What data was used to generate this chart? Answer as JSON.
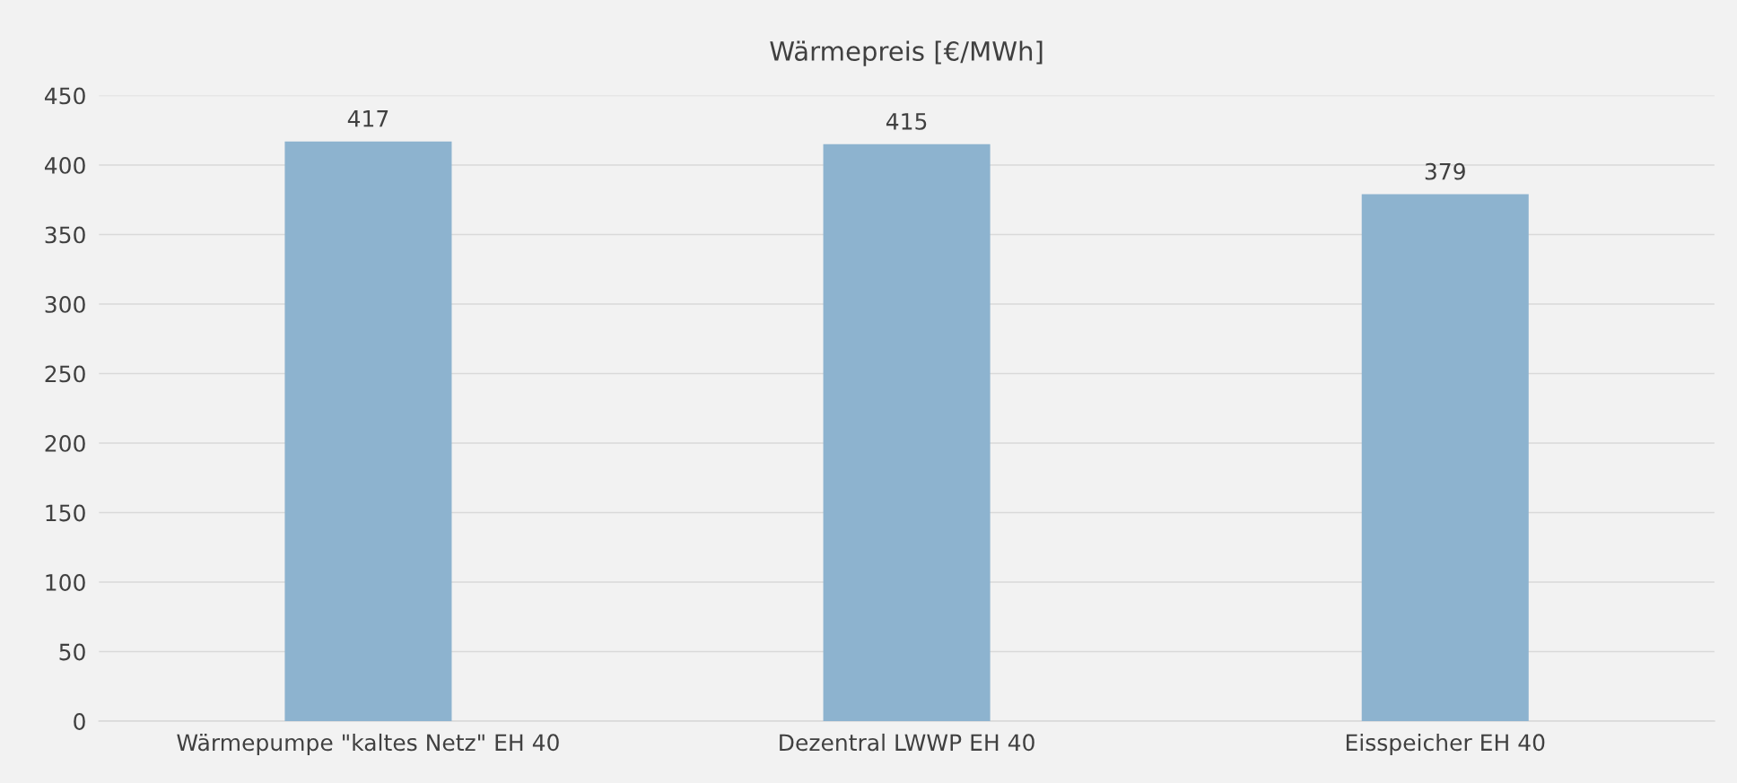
{
  "chart_data": {
    "type": "bar",
    "title": "Wärmepreis [€/MWh]",
    "categories": [
      "Wärmepumpe \"kaltes Netz\" EH 40",
      "Dezentral LWWP EH 40",
      "Eisspeicher EH 40"
    ],
    "values": [
      417,
      415,
      379
    ],
    "color": "#8db3cf",
    "ylim": [
      0,
      450
    ],
    "yticks": [
      0,
      50,
      100,
      150,
      200,
      250,
      300,
      350,
      400,
      450
    ],
    "grid": "y",
    "data_labels": true,
    "legend": false
  }
}
